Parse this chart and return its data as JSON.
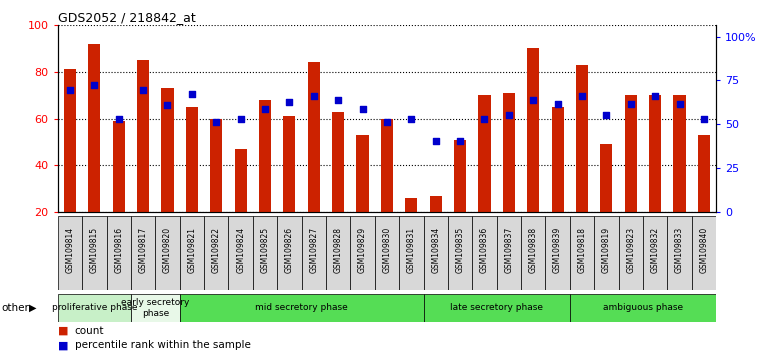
{
  "title": "GDS2052 / 218842_at",
  "samples": [
    "GSM109814",
    "GSM109815",
    "GSM109816",
    "GSM109817",
    "GSM109820",
    "GSM109821",
    "GSM109822",
    "GSM109824",
    "GSM109825",
    "GSM109826",
    "GSM109827",
    "GSM109828",
    "GSM109829",
    "GSM109830",
    "GSM109831",
    "GSM109834",
    "GSM109835",
    "GSM109836",
    "GSM109837",
    "GSM109838",
    "GSM109839",
    "GSM109818",
    "GSM109819",
    "GSM109823",
    "GSM109832",
    "GSM109833",
    "GSM109840"
  ],
  "count_values": [
    81,
    92,
    59,
    85,
    73,
    65,
    60,
    47,
    68,
    61,
    84,
    63,
    53,
    60,
    26,
    27,
    51,
    70,
    71,
    90,
    65,
    83,
    49,
    70,
    70,
    70,
    53
  ],
  "percentile_values": [
    65,
    68,
    50,
    65,
    57,
    63,
    48,
    50,
    55,
    59,
    62,
    60,
    55,
    48,
    50,
    38,
    38,
    50,
    52,
    60,
    58,
    62,
    52,
    58,
    62,
    58,
    50
  ],
  "phase_groups": [
    {
      "label": "proliferative phase",
      "start": 0,
      "end": 3,
      "color": "#c8f0c8"
    },
    {
      "label": "early secretory\nphase",
      "start": 3,
      "end": 5,
      "color": "#e8f8e8"
    },
    {
      "label": "mid secretory phase",
      "start": 5,
      "end": 15,
      "color": "#55dd55"
    },
    {
      "label": "late secretory phase",
      "start": 15,
      "end": 21,
      "color": "#55dd55"
    },
    {
      "label": "ambiguous phase",
      "start": 21,
      "end": 27,
      "color": "#55dd55"
    }
  ],
  "bar_color": "#cc2200",
  "dot_color": "#0000cc",
  "plot_bg": "#ffffff",
  "ylim_left": [
    20,
    100
  ],
  "ylim_right": [
    0,
    100
  ],
  "yticks_left": [
    20,
    40,
    60,
    80,
    100
  ],
  "ytick_labels_left": [
    "20",
    "40",
    "60",
    "80",
    "100"
  ],
  "yticks_right_pos": [
    20,
    38.75,
    57.5,
    76.25,
    95
  ],
  "ytick_labels_right": [
    "0",
    "25",
    "50",
    "75",
    "100%"
  ],
  "other_label": "other"
}
